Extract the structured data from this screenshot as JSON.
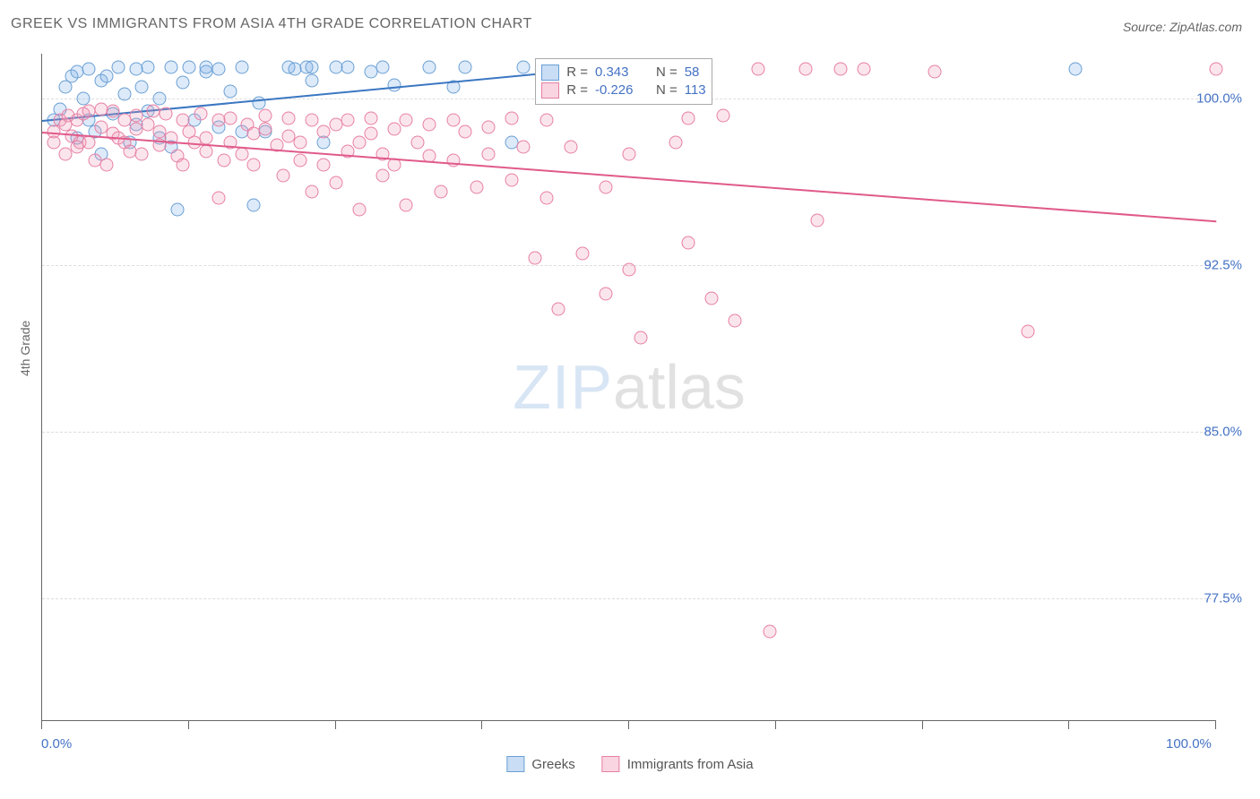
{
  "title": "GREEK VS IMMIGRANTS FROM ASIA 4TH GRADE CORRELATION CHART",
  "source": "Source: ZipAtlas.com",
  "ylabel": "4th Grade",
  "watermark": {
    "zip": "ZIP",
    "atlas": "atlas"
  },
  "chart": {
    "type": "scatter",
    "background_color": "#ffffff",
    "grid_color": "#dddddd",
    "axis_color": "#666666",
    "tick_label_color": "#4472c4",
    "label_fontsize": 14,
    "tick_fontsize": 15,
    "xlim": [
      0,
      100
    ],
    "ylim": [
      72,
      102
    ],
    "x_ticks": [
      0,
      12.5,
      25,
      37.5,
      50,
      62.5,
      75,
      87.5,
      100
    ],
    "x_tick_labels": {
      "0": "0.0%",
      "100": "100.0%"
    },
    "y_gridlines": [
      77.5,
      85.0,
      92.5,
      100.0
    ],
    "y_tick_labels": [
      "77.5%",
      "85.0%",
      "92.5%",
      "100.0%"
    ],
    "marker_size": 15,
    "series": [
      {
        "name": "Greeks",
        "color_fill": "rgba(120,170,230,0.25)",
        "color_stroke": "#6a9fd4",
        "R": "0.343",
        "N": "58",
        "trend": {
          "x1": 0,
          "y1": 99.0,
          "x2": 50,
          "y2": 101.5,
          "color": "#3b77c2"
        },
        "points": [
          [
            1,
            99.0
          ],
          [
            1.5,
            99.5
          ],
          [
            2,
            100.5
          ],
          [
            2.5,
            101.0
          ],
          [
            3,
            98.2
          ],
          [
            3,
            101.2
          ],
          [
            3.5,
            100.0
          ],
          [
            4,
            99.0
          ],
          [
            4,
            101.3
          ],
          [
            4.5,
            98.5
          ],
          [
            5,
            100.8
          ],
          [
            5,
            97.5
          ],
          [
            5.5,
            101.0
          ],
          [
            6,
            99.3
          ],
          [
            6.5,
            101.4
          ],
          [
            7,
            100.2
          ],
          [
            7.5,
            98.0
          ],
          [
            8,
            101.3
          ],
          [
            8,
            98.8
          ],
          [
            8.5,
            100.5
          ],
          [
            9,
            99.4
          ],
          [
            9,
            101.4
          ],
          [
            10,
            98.2
          ],
          [
            10,
            100.0
          ],
          [
            11,
            101.4
          ],
          [
            11,
            97.8
          ],
          [
            11.5,
            95.0
          ],
          [
            12,
            100.7
          ],
          [
            12.5,
            101.4
          ],
          [
            13,
            99.0
          ],
          [
            14,
            101.2
          ],
          [
            14,
            101.4
          ],
          [
            15,
            98.7
          ],
          [
            15,
            101.3
          ],
          [
            16,
            100.3
          ],
          [
            17,
            101.4
          ],
          [
            17,
            98.5
          ],
          [
            18,
            95.2
          ],
          [
            18.5,
            99.8
          ],
          [
            19,
            98.5
          ],
          [
            21,
            101.4
          ],
          [
            21.5,
            101.3
          ],
          [
            22.5,
            101.4
          ],
          [
            23,
            100.8
          ],
          [
            23,
            101.4
          ],
          [
            24,
            98.0
          ],
          [
            25,
            101.4
          ],
          [
            26,
            101.4
          ],
          [
            28,
            101.2
          ],
          [
            29,
            101.4
          ],
          [
            30,
            100.6
          ],
          [
            33,
            101.4
          ],
          [
            35,
            100.5
          ],
          [
            36,
            101.4
          ],
          [
            40,
            98.0
          ],
          [
            41,
            101.4
          ],
          [
            48,
            101.4
          ],
          [
            88,
            101.3
          ]
        ]
      },
      {
        "name": "Immigrants from Asia",
        "color_fill": "rgba(240,150,180,0.25)",
        "color_stroke": "#e77fa3",
        "R": "-0.226",
        "N": "113",
        "trend": {
          "x1": 0,
          "y1": 98.5,
          "x2": 100,
          "y2": 94.5,
          "color": "#e05a8a"
        },
        "points": [
          [
            1,
            98.5
          ],
          [
            1,
            98.0
          ],
          [
            1.5,
            99.0
          ],
          [
            2,
            98.8
          ],
          [
            2,
            97.5
          ],
          [
            2.2,
            99.2
          ],
          [
            2.5,
            98.3
          ],
          [
            3,
            99.0
          ],
          [
            3,
            97.8
          ],
          [
            3.2,
            98.0
          ],
          [
            3.5,
            99.3
          ],
          [
            4,
            98.0
          ],
          [
            4,
            99.4
          ],
          [
            4.5,
            97.2
          ],
          [
            5,
            98.7
          ],
          [
            5,
            99.5
          ],
          [
            5.5,
            97.0
          ],
          [
            6,
            98.4
          ],
          [
            6,
            99.4
          ],
          [
            6.5,
            98.2
          ],
          [
            7,
            99.0
          ],
          [
            7,
            98.0
          ],
          [
            7.5,
            97.6
          ],
          [
            8,
            99.2
          ],
          [
            8,
            98.6
          ],
          [
            8.5,
            97.5
          ],
          [
            9,
            98.8
          ],
          [
            9.5,
            99.4
          ],
          [
            10,
            97.9
          ],
          [
            10,
            98.5
          ],
          [
            10.5,
            99.3
          ],
          [
            11,
            98.2
          ],
          [
            11.5,
            97.4
          ],
          [
            12,
            99.0
          ],
          [
            12,
            97.0
          ],
          [
            12.5,
            98.5
          ],
          [
            13,
            98.0
          ],
          [
            13.5,
            99.3
          ],
          [
            14,
            97.6
          ],
          [
            14,
            98.2
          ],
          [
            15,
            95.5
          ],
          [
            15,
            99.0
          ],
          [
            15.5,
            97.2
          ],
          [
            16,
            98.0
          ],
          [
            16,
            99.1
          ],
          [
            17,
            97.5
          ],
          [
            17.5,
            98.8
          ],
          [
            18,
            98.4
          ],
          [
            18,
            97.0
          ],
          [
            19,
            98.6
          ],
          [
            19,
            99.2
          ],
          [
            20,
            97.9
          ],
          [
            20.5,
            96.5
          ],
          [
            21,
            98.3
          ],
          [
            21,
            99.1
          ],
          [
            22,
            97.2
          ],
          [
            22,
            98.0
          ],
          [
            23,
            99.0
          ],
          [
            23,
            95.8
          ],
          [
            24,
            98.5
          ],
          [
            24,
            97.0
          ],
          [
            25,
            98.8
          ],
          [
            25,
            96.2
          ],
          [
            26,
            99.0
          ],
          [
            26,
            97.6
          ],
          [
            27,
            98.0
          ],
          [
            27,
            95.0
          ],
          [
            28,
            99.1
          ],
          [
            28,
            98.4
          ],
          [
            29,
            97.5
          ],
          [
            29,
            96.5
          ],
          [
            30,
            98.6
          ],
          [
            30,
            97.0
          ],
          [
            31,
            99.0
          ],
          [
            31,
            95.2
          ],
          [
            32,
            98.0
          ],
          [
            33,
            98.8
          ],
          [
            33,
            97.4
          ],
          [
            34,
            95.8
          ],
          [
            35,
            99.0
          ],
          [
            35,
            97.2
          ],
          [
            36,
            98.5
          ],
          [
            37,
            96.0
          ],
          [
            38,
            98.7
          ],
          [
            38,
            97.5
          ],
          [
            40,
            99.1
          ],
          [
            40,
            96.3
          ],
          [
            41,
            97.8
          ],
          [
            42,
            92.8
          ],
          [
            43,
            99.0
          ],
          [
            43,
            95.5
          ],
          [
            44,
            90.5
          ],
          [
            45,
            97.8
          ],
          [
            46,
            93.0
          ],
          [
            48,
            96.0
          ],
          [
            48,
            91.2
          ],
          [
            50,
            97.5
          ],
          [
            50,
            92.3
          ],
          [
            51,
            89.2
          ],
          [
            54,
            98.0
          ],
          [
            55,
            93.5
          ],
          [
            55,
            99.1
          ],
          [
            57,
            91.0
          ],
          [
            58,
            99.2
          ],
          [
            59,
            90.0
          ],
          [
            61,
            101.3
          ],
          [
            62,
            76.0
          ],
          [
            65,
            101.3
          ],
          [
            66,
            94.5
          ],
          [
            68,
            101.3
          ],
          [
            70,
            101.3
          ],
          [
            76,
            101.2
          ],
          [
            84,
            89.5
          ],
          [
            100,
            101.3
          ]
        ]
      }
    ]
  },
  "stat_box_labels": {
    "R": "R =",
    "N": "N ="
  },
  "legend": {
    "greeks": "Greeks",
    "asia": "Immigrants from Asia"
  }
}
